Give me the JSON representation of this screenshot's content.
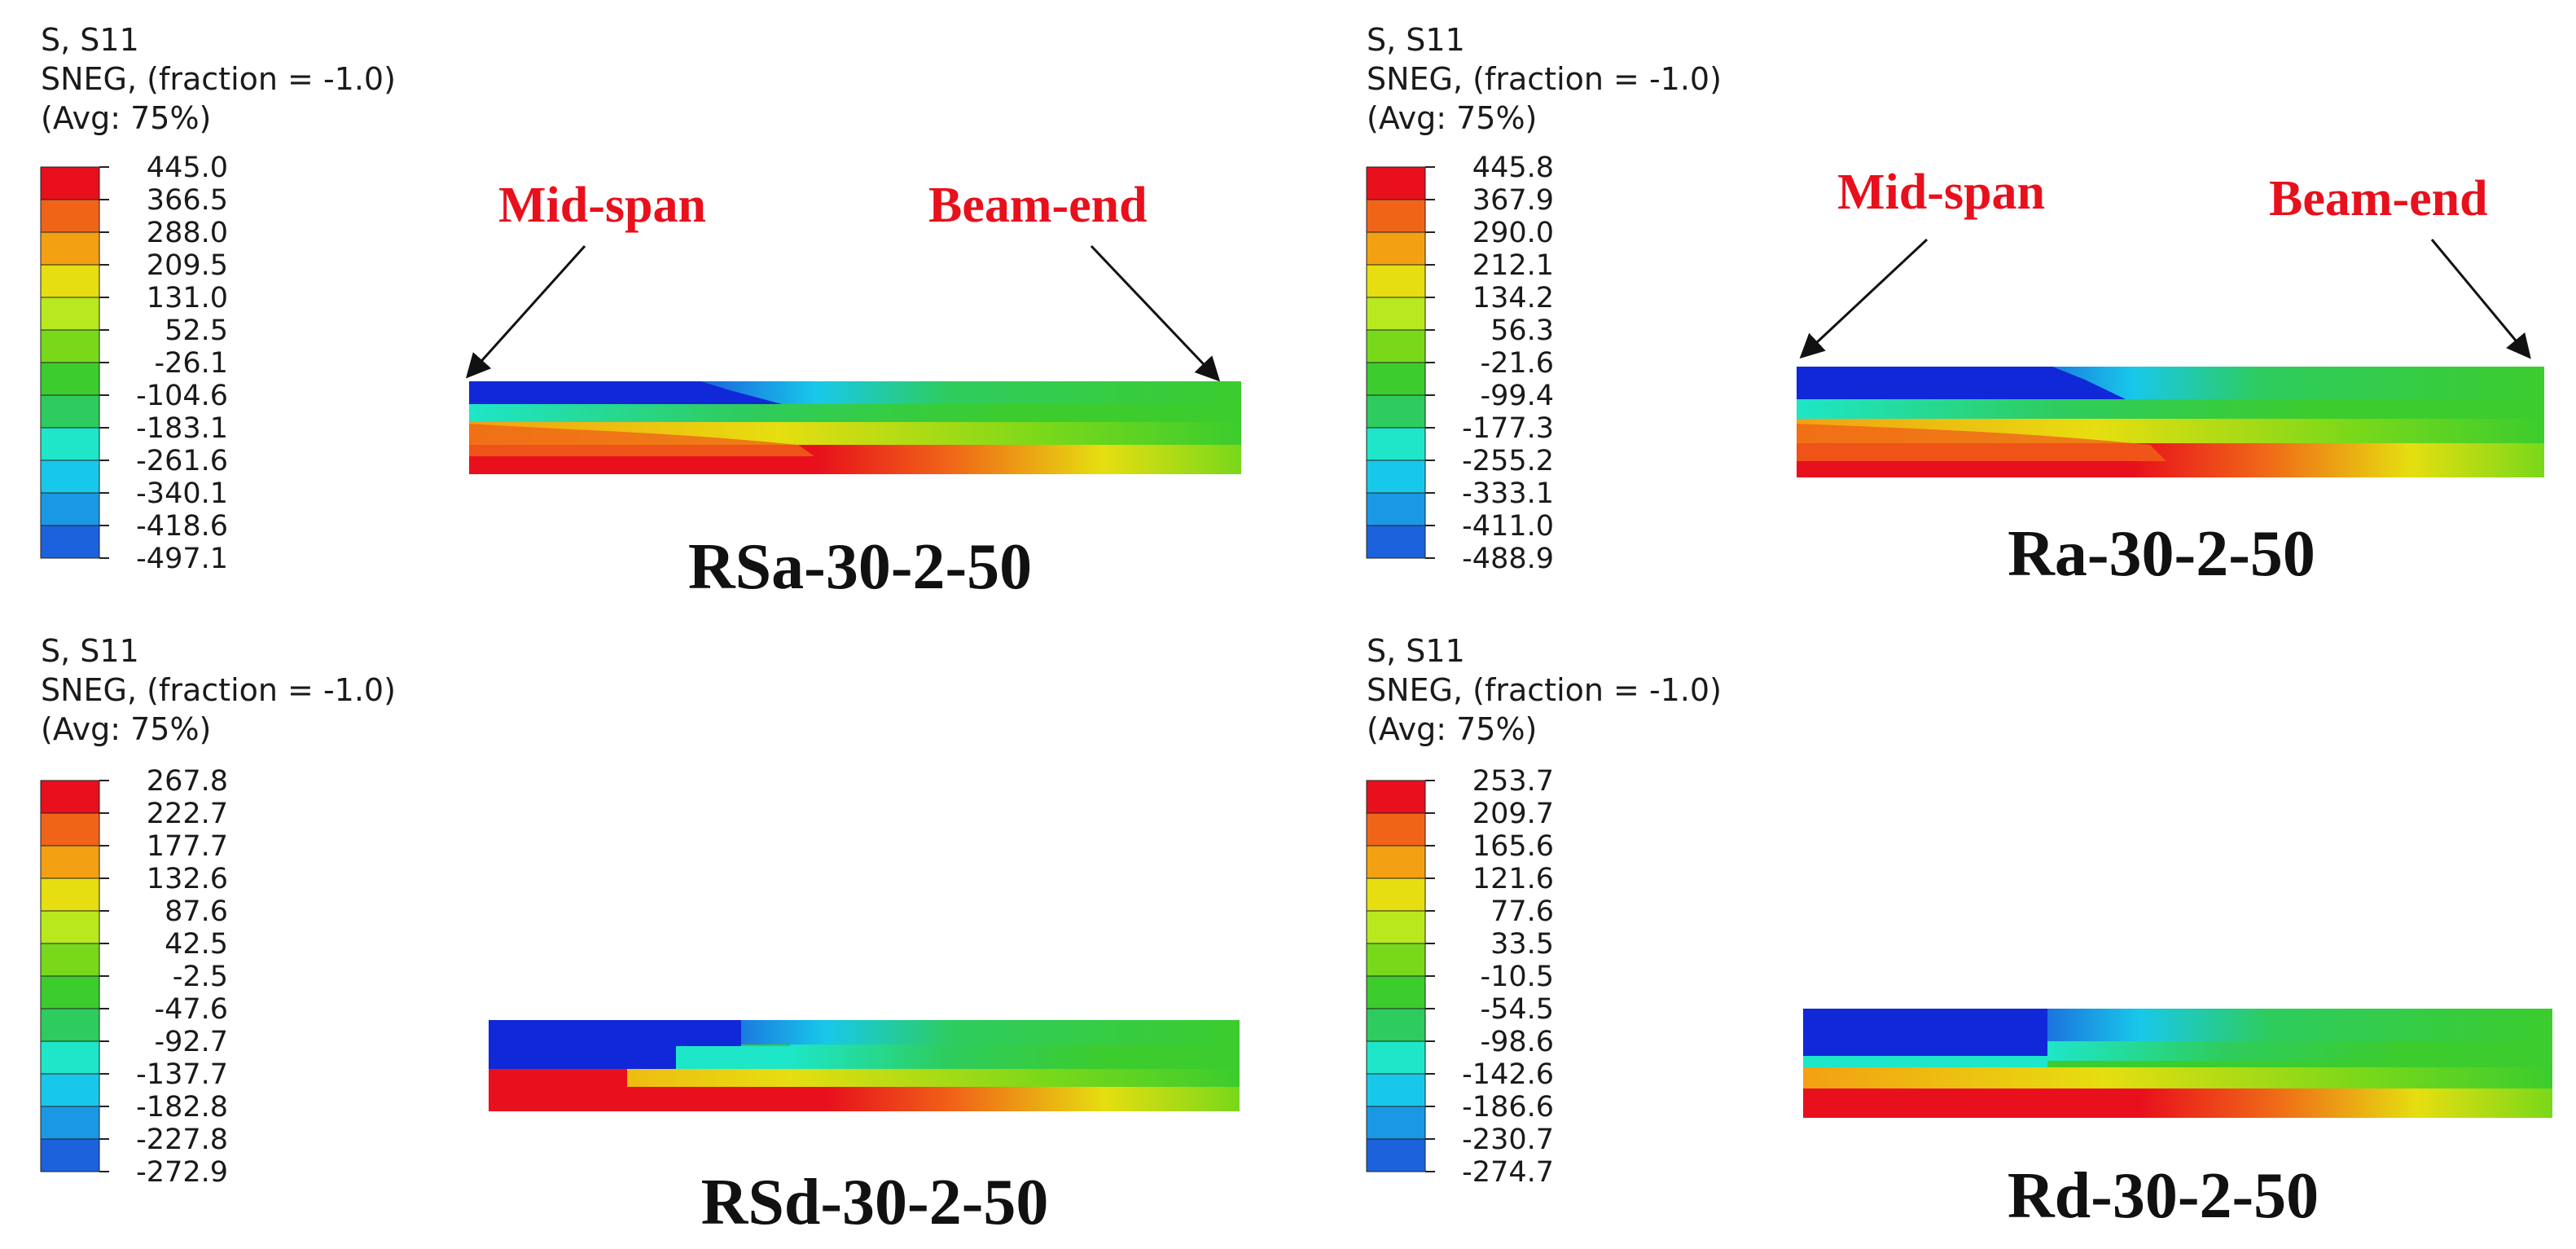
{
  "figure_panels": [
    {
      "id": "rsa",
      "legend_title": [
        "S, S11",
        "SNEG, (fraction = -1.0)",
        "(Avg: 75%)"
      ],
      "legend_values": [
        "445.0",
        "366.5",
        "288.0",
        "209.5",
        "131.0",
        "52.5",
        "-26.1",
        "-104.6",
        "-183.1",
        "-261.6",
        "-340.1",
        "-418.6",
        "-497.1"
      ],
      "caption": "RSa-30-2-50",
      "callouts": {
        "left": "Mid-span",
        "right": "Beam-end"
      }
    },
    {
      "id": "ra",
      "legend_title": [
        "S, S11",
        "SNEG, (fraction = -1.0)",
        "(Avg: 75%)"
      ],
      "legend_values": [
        "445.8",
        "367.9",
        "290.0",
        "212.1",
        "134.2",
        "56.3",
        "-21.6",
        "-99.4",
        "-177.3",
        "-255.2",
        "-333.1",
        "-411.0",
        "-488.9"
      ],
      "caption": "Ra-30-2-50",
      "callouts": {
        "left": "Mid-span",
        "right": "Beam-end"
      }
    },
    {
      "id": "rsd",
      "legend_title": [
        "S, S11",
        "SNEG, (fraction = -1.0)",
        "(Avg: 75%)"
      ],
      "legend_values": [
        "267.8",
        "222.7",
        "177.7",
        "132.6",
        "87.6",
        "42.5",
        "-2.5",
        "-47.6",
        "-92.7",
        "-137.7",
        "-182.8",
        "-227.8",
        "-272.9"
      ],
      "caption": "RSd-30-2-50",
      "callouts": null
    },
    {
      "id": "rd",
      "legend_title": [
        "S, S11",
        "SNEG, (fraction = -1.0)",
        "(Avg: 75%)"
      ],
      "legend_values": [
        "253.7",
        "209.7",
        "165.6",
        "121.6",
        "77.6",
        "33.5",
        "-10.5",
        "-54.5",
        "-98.6",
        "-142.6",
        "-186.6",
        "-230.7",
        "-274.7"
      ],
      "caption": "Rd-30-2-50",
      "callouts": null
    }
  ],
  "colors": {
    "contour_scale": [
      "#e8101c",
      "#f06418",
      "#f3a012",
      "#e6de10",
      "#b8e81e",
      "#78d81a",
      "#3ccc2e",
      "#2ecc5e",
      "#1ee6c8",
      "#18c8ea",
      "#1a98e6",
      "#1c62dc",
      "#1028d8"
    ],
    "callout_text": "#e8101c",
    "arrow": "#111111"
  }
}
